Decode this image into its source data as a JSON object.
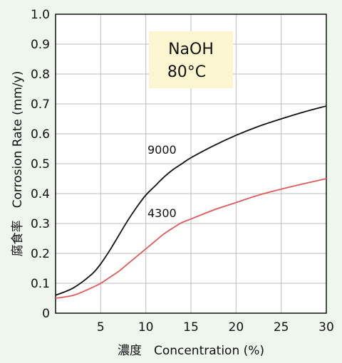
{
  "chart_data": {
    "type": "line",
    "xlabel": "濃度　Concentration (%)",
    "ylabel": "腐食率　Corrosion Rate (mm/y)",
    "xlim": [
      0,
      30
    ],
    "ylim": [
      0,
      1.0
    ],
    "x_ticks": [
      "5",
      "10",
      "15",
      "20",
      "25",
      "30"
    ],
    "y_ticks": [
      "0",
      "0.1",
      "0.2",
      "0.3",
      "0.4",
      "0.5",
      "0.6",
      "0.7",
      "0.8",
      "0.9",
      "1.0"
    ],
    "grid": true,
    "annotation": {
      "line1": "NaOH",
      "line2": "80°C",
      "background": "#fbf6cf"
    },
    "series": [
      {
        "name": "9000",
        "color": "#111111",
        "x": [
          0,
          2,
          4,
          5,
          6,
          7,
          8,
          9,
          10,
          11,
          12,
          13,
          14,
          15,
          17.5,
          20,
          22.5,
          25,
          27.5,
          30
        ],
        "y": [
          0.06,
          0.085,
          0.13,
          0.165,
          0.21,
          0.26,
          0.31,
          0.355,
          0.395,
          0.425,
          0.455,
          0.48,
          0.5,
          0.52,
          0.56,
          0.595,
          0.625,
          0.65,
          0.673,
          0.693
        ]
      },
      {
        "name": "4300",
        "color": "#e05a5a",
        "x": [
          0,
          2,
          4,
          5,
          6,
          7,
          8,
          9,
          10,
          11,
          12,
          13,
          14,
          15,
          17.5,
          20,
          22.5,
          25,
          27.5,
          30
        ],
        "y": [
          0.05,
          0.06,
          0.085,
          0.1,
          0.12,
          0.14,
          0.165,
          0.19,
          0.215,
          0.24,
          0.265,
          0.285,
          0.303,
          0.315,
          0.345,
          0.37,
          0.395,
          0.415,
          0.433,
          0.45
        ]
      }
    ]
  }
}
